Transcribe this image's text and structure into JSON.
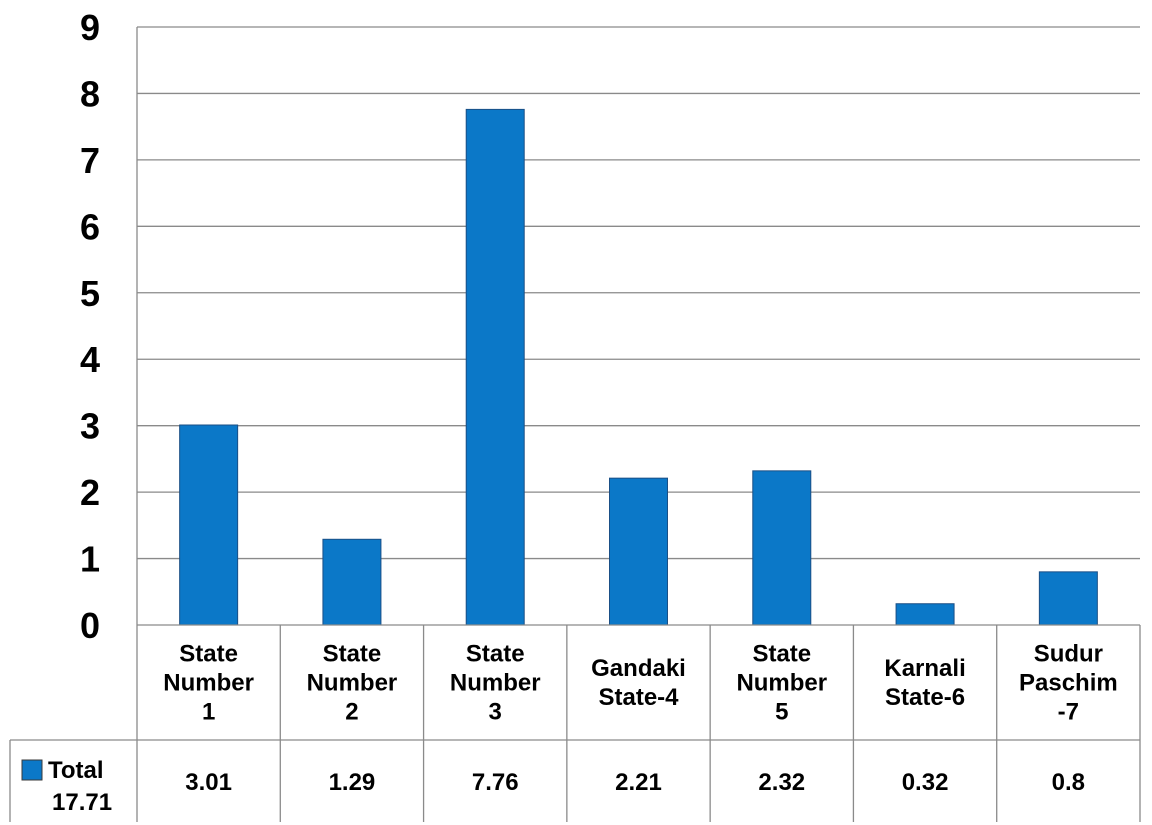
{
  "chart_data": {
    "type": "bar",
    "categories": [
      [
        "State",
        "Number",
        "1"
      ],
      [
        "State",
        "Number",
        "2"
      ],
      [
        "State",
        "Number",
        "3"
      ],
      [
        "Gandaki",
        "State-4"
      ],
      [
        "State",
        "Number",
        "5"
      ],
      [
        "Karnali",
        "State-6"
      ],
      [
        "Sudur",
        "Paschim",
        "-7"
      ]
    ],
    "series": [
      {
        "name": "Total",
        "total_label": "17.71",
        "values": [
          3.01,
          1.29,
          7.76,
          2.21,
          2.32,
          0.32,
          0.8
        ],
        "value_labels": [
          "3.01",
          "1.29",
          "7.76",
          "2.21",
          "2.32",
          "0.32",
          "0.8"
        ],
        "color": "#0B78C8"
      }
    ],
    "ylim": [
      0,
      9
    ],
    "yticks": [
      "0",
      "1",
      "2",
      "3",
      "4",
      "5",
      "6",
      "7",
      "8",
      "9"
    ],
    "grid": true,
    "data_table": true
  }
}
